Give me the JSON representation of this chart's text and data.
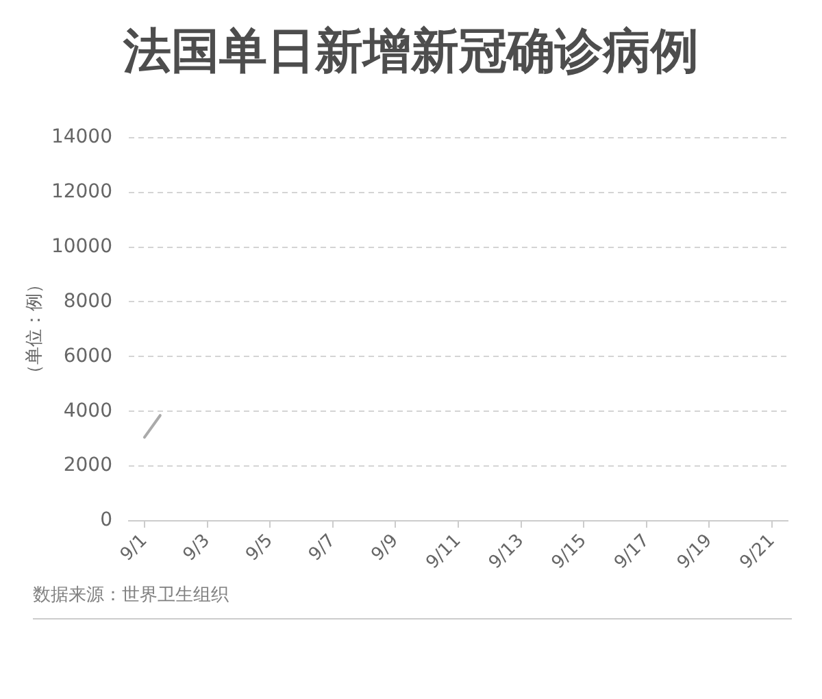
{
  "chart_data": {
    "type": "line",
    "title": "法国单日新增新冠确诊病例",
    "ylabel": "（单位：例）",
    "annotations": [
      "数据来源：世界卫生组织"
    ],
    "x": [
      "--09-01",
      "--09-01T12:00"
    ],
    "values": [
      3050,
      3850
    ],
    "color": "#aaaaaa",
    "marker": "none",
    "line_style": "solid",
    "grid": "y",
    "xlim": [
      "--08-31T12:00",
      "--09-21T12:00"
    ],
    "xticks": [
      {
        "value": "--09-01",
        "label": "9/1"
      },
      {
        "value": "--09-03",
        "label": "9/3"
      },
      {
        "value": "--09-05",
        "label": "9/5"
      },
      {
        "value": "--09-07",
        "label": "9/7"
      },
      {
        "value": "--09-09",
        "label": "9/9"
      },
      {
        "value": "--09-11",
        "label": "9/11"
      },
      {
        "value": "--09-13",
        "label": "9/13"
      },
      {
        "value": "--09-15",
        "label": "9/15"
      },
      {
        "value": "--09-17",
        "label": "9/17"
      },
      {
        "value": "--09-19",
        "label": "9/19"
      },
      {
        "value": "--09-21",
        "label": "9/21"
      }
    ],
    "ylim": [
      0,
      14000
    ],
    "yticks": [
      0,
      2000,
      4000,
      6000,
      8000,
      10000,
      12000,
      14000
    ]
  }
}
